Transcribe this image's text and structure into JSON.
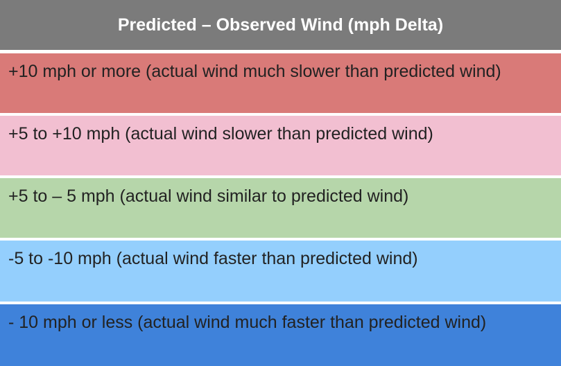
{
  "table": {
    "header": "Predicted – Observed Wind (mph Delta)",
    "rows": [
      "+10 mph or more (actual wind much slower than predicted wind)",
      "+5 to +10 mph (actual wind slower than predicted wind)",
      "+5 to – 5 mph (actual wind similar to predicted wind)",
      "-5 to -10 mph (actual wind faster than predicted wind)",
      "- 10 mph or less (actual wind much faster than predicted wind)"
    ]
  }
}
